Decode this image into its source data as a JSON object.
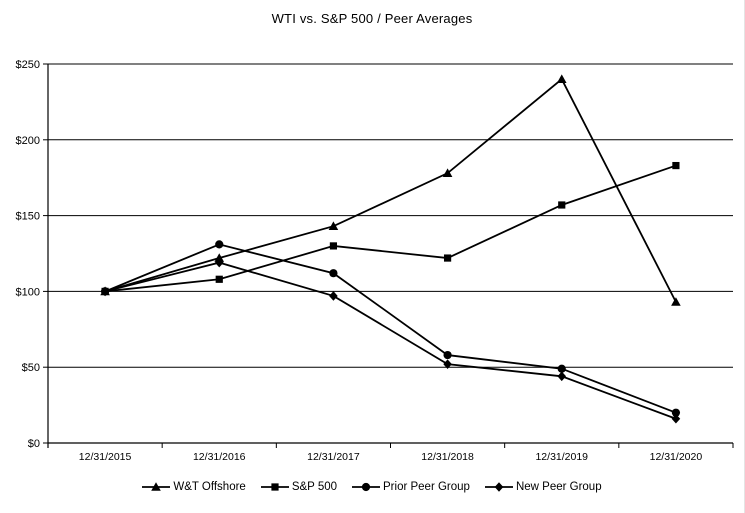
{
  "title": "WTI vs. S&P 500 / Peer Averages",
  "chart_data": {
    "type": "line",
    "title": "WTI vs. S&P 500 / Peer Averages",
    "x": [
      "12/31/2015",
      "12/31/2016",
      "12/31/2017",
      "12/31/2018",
      "12/31/2019",
      "12/31/2020"
    ],
    "series": [
      {
        "name": "W&T Offshore",
        "marker": "triangle",
        "values": [
          100,
          122,
          143,
          178,
          240,
          93
        ]
      },
      {
        "name": "S&P 500",
        "marker": "square",
        "values": [
          100,
          108,
          130,
          122,
          157,
          183
        ]
      },
      {
        "name": "Prior Peer Group",
        "marker": "circle",
        "values": [
          100,
          131,
          112,
          58,
          49,
          20
        ]
      },
      {
        "name": "New Peer Group",
        "marker": "diamond",
        "values": [
          100,
          119,
          97,
          52,
          44,
          16
        ]
      }
    ],
    "ylim": [
      0,
      250
    ],
    "ytick_interval": 50,
    "ytick_labels": [
      "$0",
      "$50",
      "$100",
      "$150",
      "$200",
      "$250"
    ],
    "xlabel": "",
    "ylabel": "",
    "grid": true,
    "legend_position": "bottom",
    "line_color": "#000000",
    "background": "#ffffff"
  }
}
